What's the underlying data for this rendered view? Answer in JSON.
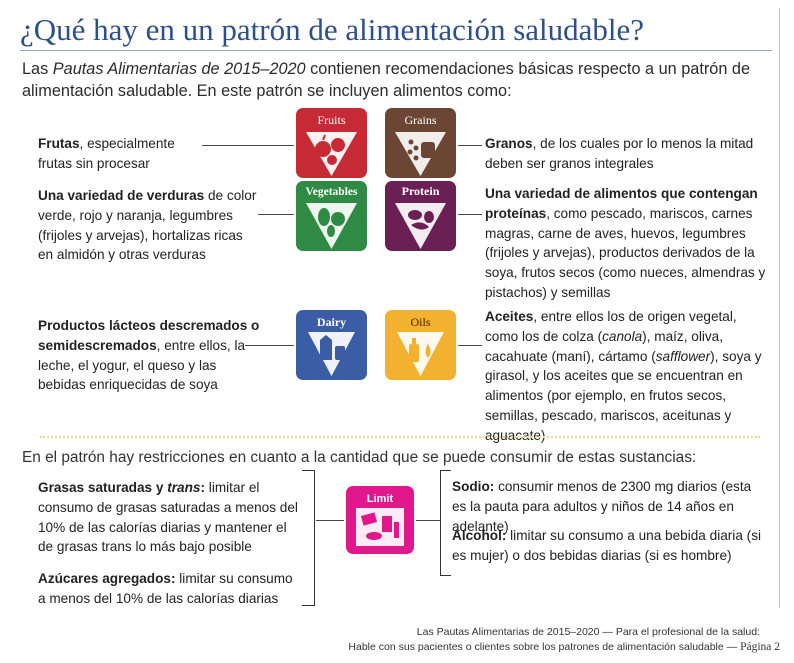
{
  "title": "¿Qué hay en un patrón de alimentación saludable?",
  "intro": {
    "before": "Las ",
    "emph": "Pautas Alimentarias de 2015–2020",
    "after": " contienen recomendaciones básicas respecto a un patrón de alimentación saludable. En este patrón se incluyen alimentos como:"
  },
  "groups": {
    "fruits": {
      "icon_label": "Fruits",
      "color": "#c62a34",
      "bold": "Frutas",
      "rest": ", especialmente frutas sin procesar"
    },
    "grains": {
      "icon_label": "Grains",
      "color": "#6b4634",
      "bold": "Granos",
      "rest": ", de los cuales por lo menos la mitad deben ser granos integrales"
    },
    "vegetables": {
      "icon_label": "Vegetables",
      "color": "#2f8a43",
      "bold": "Una variedad de verduras",
      "rest": " de color verde, rojo y naranja, legumbres (frijoles y arvejas), hortalizas ricas en almidón y otras verduras"
    },
    "protein": {
      "icon_label": "Protein",
      "color": "#6b2055",
      "bold": "Una variedad de alimentos que contengan proteínas",
      "rest": ", como pescado, mariscos, carnes magras, carne de aves, huevos, legumbres (frijoles y arvejas), productos derivados de la soya, frutos secos (como nueces, almendras y pistachos) y semillas"
    },
    "dairy": {
      "icon_label": "Dairy",
      "color": "#3a5da5",
      "bold": "Productos lácteos descremados o semidescremados",
      "rest": ", entre ellos, la leche, el yogur, el queso y las bebidas enriquecidas de soya"
    },
    "oils": {
      "icon_label": "Oils",
      "color": "#f3b130",
      "bold": "Aceites",
      "rest1": ", entre ellos los de origen vegetal, como los de colza (",
      "ital1": "canola",
      "rest2": "), maíz, oliva, cacahuate (maní), cártamo (",
      "ital2": "safflower",
      "rest3": "), soya y girasol, y los aceites que se encuentran en alimentos (por ejemplo, en frutos secos, semillas, pescado, mariscos, aceitunas y aguacate)"
    }
  },
  "restrictions": {
    "heading": "En el patrón hay restricciones en cuanto a la cantidad que se puede consumir de estas sustancias:",
    "icon_label": "Limit",
    "icon_color": "#e0188c",
    "saturated": {
      "bold1": "Grasas saturadas y ",
      "bold_ital": "trans",
      "bold2": ":",
      "rest": " limitar el consumo de grasas saturadas a menos del 10% de las calorías diarias y mantener el de grasas trans lo más bajo posible"
    },
    "sugars": {
      "bold": "Azúcares agregados:",
      "rest": " limitar su consumo a menos del 10% de las calorías diarias"
    },
    "sodium": {
      "bold": "Sodio:",
      "rest": " consumir menos de 2300 mg diarios (esta es la pauta para adultos y niños de 14 años en adelante)"
    },
    "alcohol": {
      "bold": "Alcohol:",
      "rest": " limitar su consumo a una bebida diaria (si es mujer) o dos bebidas diarias (si es hombre)"
    }
  },
  "footer": {
    "line1": "Las Pautas Alimentarias de 2015–2020 — Para el profesional de la salud:",
    "line2": "Hable con sus pacientes o clientes sobre los patrones de alimentación saludable —",
    "page": "Página 2"
  }
}
